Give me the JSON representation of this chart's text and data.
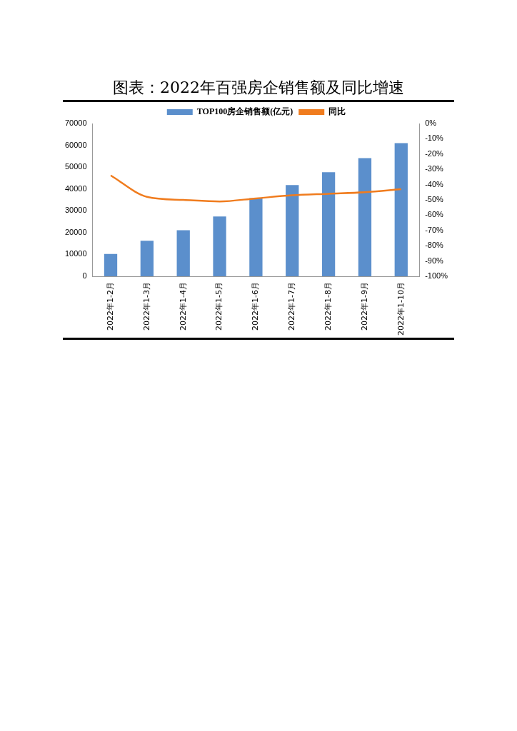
{
  "chart_data": {
    "type": "bar",
    "title": "图表：2022年百强房企销售额及同比增速",
    "categories": [
      "2022年1-2月",
      "2022年1-3月",
      "2022年1-4月",
      "2022年1-5月",
      "2022年1-6月",
      "2022年1-7月",
      "2022年1-8月",
      "2022年1-9月",
      "2022年1-10月"
    ],
    "series": [
      {
        "name": "TOP100房企销售额(亿元)",
        "color": "#5b8fcc",
        "values": [
          10200,
          16300,
          21100,
          27400,
          35800,
          41800,
          47700,
          54100,
          61000
        ]
      },
      {
        "name": "同比",
        "type": "line",
        "axis": "y2",
        "color": "#f07c1e",
        "values": [
          -34,
          -48,
          -50,
          -51,
          -49,
          -47,
          -46,
          -45,
          -43
        ]
      }
    ],
    "ylim": [
      0,
      70000
    ],
    "yticks": [
      0,
      10000,
      20000,
      30000,
      40000,
      50000,
      60000,
      70000
    ],
    "y2lim": [
      -100,
      0
    ],
    "y2ticks": [
      {
        "value": 0,
        "label": "0%"
      },
      {
        "value": -10,
        "label": "-10%"
      },
      {
        "value": -20,
        "label": "-20%"
      },
      {
        "value": -30,
        "label": "-30%"
      },
      {
        "value": -40,
        "label": "-40%"
      },
      {
        "value": -50,
        "label": "-50%"
      },
      {
        "value": -60,
        "label": "-60%"
      },
      {
        "value": -70,
        "label": "-70%"
      },
      {
        "value": -80,
        "label": "-80%"
      },
      {
        "value": -90,
        "label": "-90%"
      },
      {
        "value": -100,
        "label": "-100%"
      }
    ],
    "grid": false,
    "legend": "top",
    "marker": "none"
  }
}
